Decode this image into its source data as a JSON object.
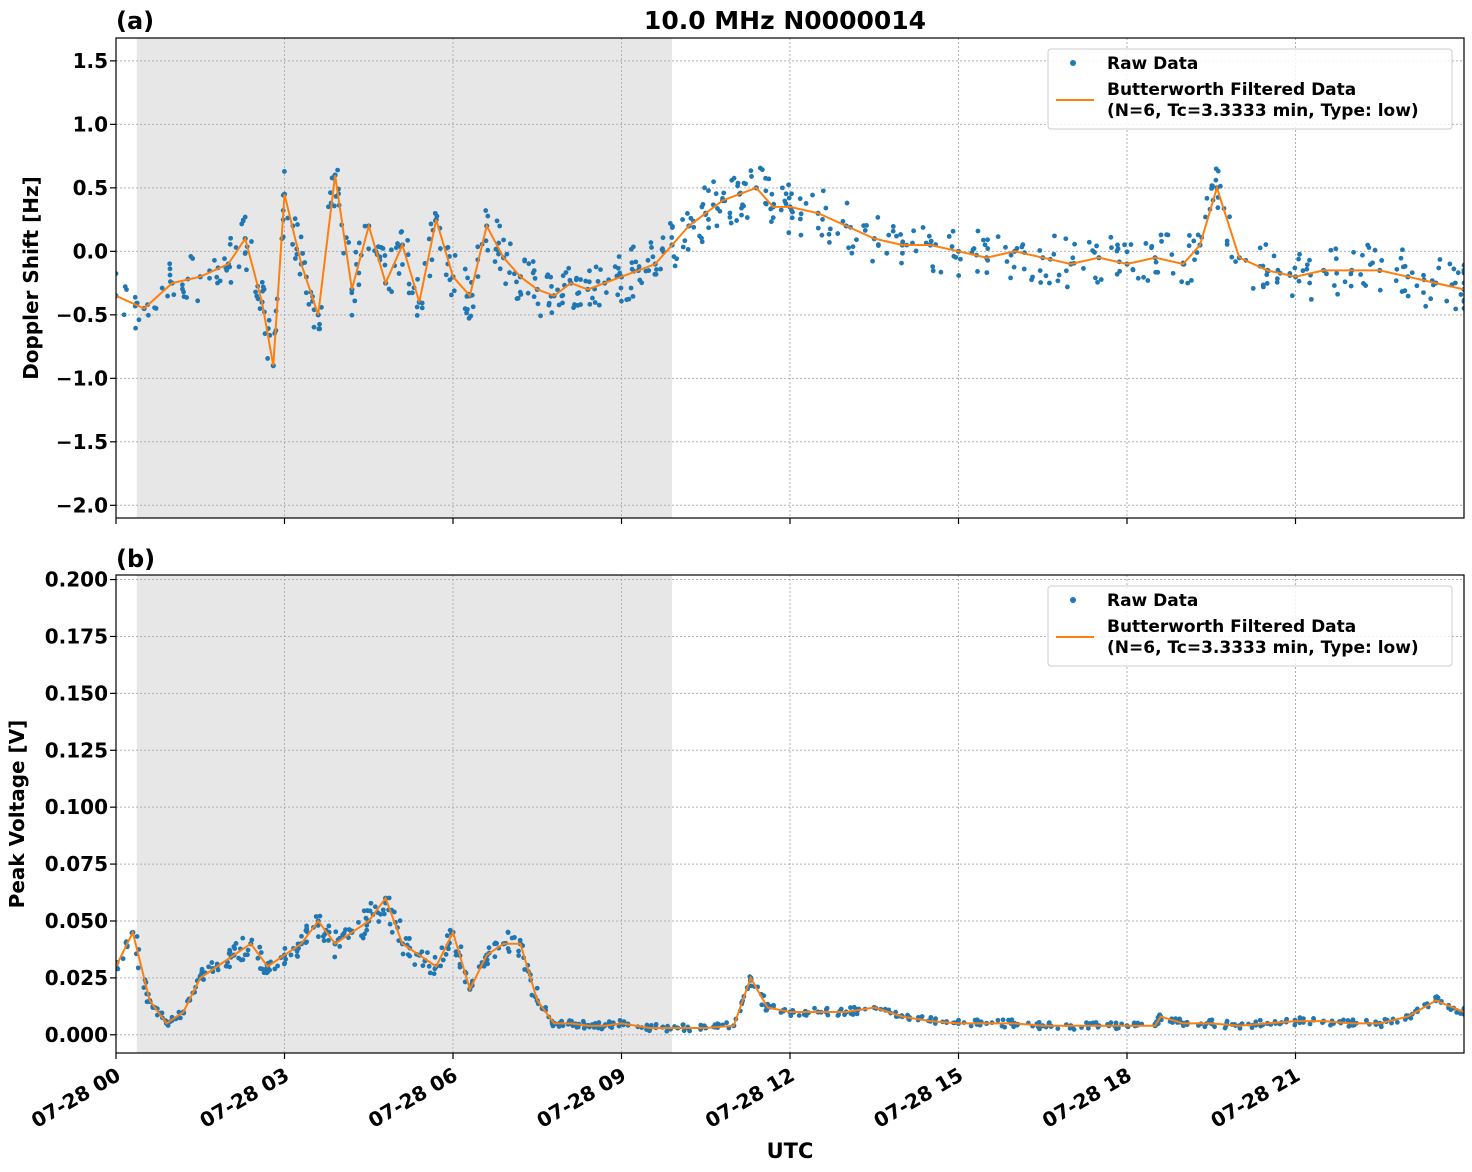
{
  "figure": {
    "title": "10.0 MHz N0000014",
    "xlabel": "UTC",
    "x_tick_labels": [
      "07-28 00",
      "07-28 03",
      "07-28 06",
      "07-28 09",
      "07-28 12",
      "07-28 15",
      "07-28 18",
      "07-28 21"
    ]
  },
  "colors": {
    "raw": "#1f77b4",
    "filtered": "#ff7f0e",
    "night_shade": "#e7e7e7",
    "grid": "#b0b0b0"
  },
  "chart_data": [
    {
      "type": "scatter",
      "panel_label": "(a)",
      "title": "10.0 MHz N0000014",
      "xlabel": "",
      "ylabel": "Doppler Shift [Hz]",
      "x_unit": "hours UTC (2024-07-28)",
      "xlim": [
        0,
        24
      ],
      "ylim": [
        -2.1,
        1.68
      ],
      "y_ticks": [
        -2.0,
        -1.5,
        -1.0,
        -0.5,
        0.0,
        0.5,
        1.0,
        1.5
      ],
      "y_tick_labels": [
        "−2.0",
        "−1.5",
        "−1.0",
        "−0.5",
        "0.0",
        "0.5",
        "1.0",
        "1.5"
      ],
      "shaded_region": [
        0.37,
        9.9
      ],
      "grid": true,
      "legend_position": "top-right",
      "series": [
        {
          "name": "Raw Data",
          "style": "dots",
          "x": [
            0.0,
            0.5,
            1.0,
            1.5,
            2.0,
            2.3,
            2.6,
            2.8,
            3.0,
            3.3,
            3.6,
            3.9,
            4.2,
            4.5,
            4.8,
            5.1,
            5.4,
            5.7,
            6.0,
            6.3,
            6.6,
            6.9,
            7.2,
            7.5,
            7.8,
            8.1,
            8.4,
            8.7,
            9.0,
            9.3,
            9.6,
            9.9,
            10.2,
            10.5,
            10.8,
            11.1,
            11.4,
            11.7,
            12.0,
            12.5,
            13.0,
            13.5,
            14.0,
            14.5,
            15.0,
            15.5,
            16.0,
            16.5,
            17.0,
            17.5,
            18.0,
            18.5,
            19.0,
            19.3,
            19.6,
            20.0,
            20.5,
            21.0,
            21.5,
            22.0,
            22.5,
            23.0,
            23.5,
            24.0
          ],
          "y": [
            -0.35,
            -0.45,
            -0.25,
            -0.2,
            -0.1,
            0.1,
            -0.4,
            -0.9,
            0.45,
            -0.1,
            -0.5,
            0.6,
            -0.3,
            0.2,
            -0.25,
            0.05,
            -0.4,
            0.25,
            -0.2,
            -0.35,
            0.2,
            -0.05,
            -0.2,
            -0.3,
            -0.35,
            -0.25,
            -0.3,
            -0.25,
            -0.2,
            -0.15,
            -0.1,
            0.05,
            0.2,
            0.3,
            0.4,
            0.45,
            0.5,
            0.35,
            0.35,
            0.3,
            0.2,
            0.1,
            0.05,
            0.05,
            0.0,
            -0.05,
            0.0,
            -0.05,
            -0.1,
            -0.05,
            -0.1,
            -0.05,
            -0.1,
            0.05,
            0.5,
            -0.05,
            -0.15,
            -0.2,
            -0.15,
            -0.15,
            -0.15,
            -0.2,
            -0.25,
            -0.3
          ]
        },
        {
          "name": "Butterworth Filtered Data\n(N=6, Tc=3.3333 min, Type: low)",
          "name_line1": "Butterworth Filtered Data",
          "name_line2": "(N=6, Tc=3.3333 min, Type: low)",
          "style": "line",
          "x": [
            0.0,
            0.5,
            1.0,
            1.5,
            2.0,
            2.3,
            2.6,
            2.8,
            3.0,
            3.3,
            3.6,
            3.9,
            4.2,
            4.5,
            4.8,
            5.1,
            5.4,
            5.7,
            6.0,
            6.3,
            6.6,
            6.9,
            7.2,
            7.5,
            7.8,
            8.1,
            8.4,
            8.7,
            9.0,
            9.3,
            9.6,
            9.9,
            10.2,
            10.5,
            10.8,
            11.1,
            11.4,
            11.7,
            12.0,
            12.5,
            13.0,
            13.5,
            14.0,
            14.5,
            15.0,
            15.5,
            16.0,
            16.5,
            17.0,
            17.5,
            18.0,
            18.5,
            19.0,
            19.3,
            19.6,
            20.0,
            20.5,
            21.0,
            21.5,
            22.0,
            22.5,
            23.0,
            23.5,
            24.0
          ],
          "y": [
            -0.35,
            -0.45,
            -0.25,
            -0.2,
            -0.1,
            0.1,
            -0.4,
            -0.9,
            0.45,
            -0.1,
            -0.5,
            0.6,
            -0.3,
            0.2,
            -0.25,
            0.05,
            -0.4,
            0.25,
            -0.2,
            -0.35,
            0.2,
            -0.05,
            -0.2,
            -0.3,
            -0.35,
            -0.25,
            -0.3,
            -0.25,
            -0.2,
            -0.15,
            -0.1,
            0.05,
            0.2,
            0.3,
            0.4,
            0.45,
            0.5,
            0.35,
            0.35,
            0.3,
            0.2,
            0.1,
            0.05,
            0.05,
            0.0,
            -0.05,
            0.0,
            -0.05,
            -0.1,
            -0.05,
            -0.1,
            -0.05,
            -0.1,
            0.05,
            0.5,
            -0.05,
            -0.15,
            -0.2,
            -0.15,
            -0.15,
            -0.15,
            -0.2,
            -0.25,
            -0.3
          ]
        }
      ]
    },
    {
      "type": "scatter",
      "panel_label": "(b)",
      "title": "",
      "xlabel": "UTC",
      "ylabel": "Peak Voltage [V]",
      "x_unit": "hours UTC (2024-07-28)",
      "xlim": [
        0,
        24
      ],
      "ylim": [
        -0.008,
        0.202
      ],
      "y_ticks": [
        0.0,
        0.025,
        0.05,
        0.075,
        0.1,
        0.125,
        0.15,
        0.175,
        0.2
      ],
      "y_tick_labels": [
        "0.000",
        "0.025",
        "0.050",
        "0.075",
        "0.100",
        "0.125",
        "0.150",
        "0.175",
        "0.200"
      ],
      "shaded_region": [
        0.37,
        9.9
      ],
      "grid": true,
      "legend_position": "top-right",
      "series": [
        {
          "name": "Raw Data",
          "style": "dots",
          "x": [
            0.0,
            0.3,
            0.6,
            0.9,
            1.2,
            1.5,
            1.8,
            2.1,
            2.4,
            2.7,
            3.0,
            3.3,
            3.6,
            3.9,
            4.2,
            4.5,
            4.8,
            5.1,
            5.4,
            5.7,
            6.0,
            6.3,
            6.6,
            6.9,
            7.2,
            7.5,
            7.8,
            8.1,
            8.4,
            8.7,
            9.0,
            9.5,
            10.0,
            10.5,
            11.0,
            11.3,
            11.6,
            12.0,
            12.5,
            13.0,
            13.5,
            14.0,
            14.5,
            15.0,
            15.5,
            16.0,
            16.5,
            17.0,
            17.5,
            18.0,
            18.5,
            18.6,
            19.0,
            19.5,
            20.0,
            20.5,
            21.0,
            21.5,
            22.0,
            22.5,
            23.0,
            23.5,
            24.0
          ],
          "y": [
            0.03,
            0.045,
            0.015,
            0.005,
            0.01,
            0.025,
            0.03,
            0.035,
            0.04,
            0.03,
            0.035,
            0.04,
            0.05,
            0.04,
            0.045,
            0.05,
            0.06,
            0.04,
            0.035,
            0.03,
            0.045,
            0.02,
            0.035,
            0.04,
            0.04,
            0.015,
            0.005,
            0.005,
            0.004,
            0.004,
            0.005,
            0.003,
            0.003,
            0.003,
            0.004,
            0.025,
            0.012,
            0.01,
            0.01,
            0.01,
            0.012,
            0.008,
            0.006,
            0.005,
            0.005,
            0.005,
            0.004,
            0.004,
            0.004,
            0.004,
            0.004,
            0.008,
            0.005,
            0.005,
            0.004,
            0.005,
            0.006,
            0.006,
            0.005,
            0.005,
            0.008,
            0.015,
            0.01
          ]
        },
        {
          "name": "Butterworth Filtered Data\n(N=6, Tc=3.3333 min, Type: low)",
          "name_line1": "Butterworth Filtered Data",
          "name_line2": "(N=6, Tc=3.3333 min, Type: low)",
          "style": "line",
          "x": [
            0.0,
            0.3,
            0.6,
            0.9,
            1.2,
            1.5,
            1.8,
            2.1,
            2.4,
            2.7,
            3.0,
            3.3,
            3.6,
            3.9,
            4.2,
            4.5,
            4.8,
            5.1,
            5.4,
            5.7,
            6.0,
            6.3,
            6.6,
            6.9,
            7.2,
            7.5,
            7.8,
            8.1,
            8.4,
            8.7,
            9.0,
            9.5,
            10.0,
            10.5,
            11.0,
            11.3,
            11.6,
            12.0,
            12.5,
            13.0,
            13.5,
            14.0,
            14.5,
            15.0,
            15.5,
            16.0,
            16.5,
            17.0,
            17.5,
            18.0,
            18.5,
            18.6,
            19.0,
            19.5,
            20.0,
            20.5,
            21.0,
            21.5,
            22.0,
            22.5,
            23.0,
            23.5,
            24.0
          ],
          "y": [
            0.03,
            0.045,
            0.015,
            0.005,
            0.01,
            0.025,
            0.03,
            0.035,
            0.04,
            0.03,
            0.035,
            0.04,
            0.05,
            0.04,
            0.045,
            0.05,
            0.06,
            0.04,
            0.035,
            0.03,
            0.045,
            0.02,
            0.035,
            0.04,
            0.04,
            0.015,
            0.005,
            0.005,
            0.004,
            0.004,
            0.005,
            0.003,
            0.003,
            0.003,
            0.004,
            0.025,
            0.012,
            0.01,
            0.01,
            0.01,
            0.012,
            0.008,
            0.006,
            0.005,
            0.005,
            0.005,
            0.004,
            0.004,
            0.004,
            0.004,
            0.004,
            0.008,
            0.005,
            0.005,
            0.004,
            0.005,
            0.006,
            0.006,
            0.005,
            0.005,
            0.008,
            0.015,
            0.01
          ]
        }
      ]
    }
  ]
}
